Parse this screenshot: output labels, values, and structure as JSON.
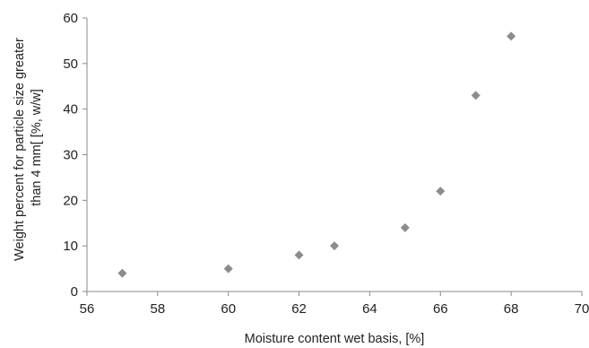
{
  "chart_data": {
    "type": "scatter",
    "title": "",
    "xlabel": "Moisture content wet basis, [%]",
    "ylabel_lines": [
      "Weight percent for particle size greater",
      "than 4 mm[ [%, w/w]"
    ],
    "xlim": [
      56,
      70
    ],
    "ylim": [
      0,
      60
    ],
    "x_ticks": [
      "56",
      "58",
      "60",
      "62",
      "64",
      "66",
      "68",
      "70"
    ],
    "y_ticks": [
      "0",
      "10",
      "20",
      "30",
      "40",
      "50",
      "60"
    ],
    "grid": false,
    "legend": "none",
    "marker": "diamond",
    "marker_color": "#8c8c8c",
    "series": [
      {
        "x": [
          57,
          60,
          62,
          63,
          65,
          66,
          67,
          68
        ],
        "y": [
          4,
          5,
          8,
          10,
          14,
          22,
          43,
          56
        ]
      }
    ]
  }
}
